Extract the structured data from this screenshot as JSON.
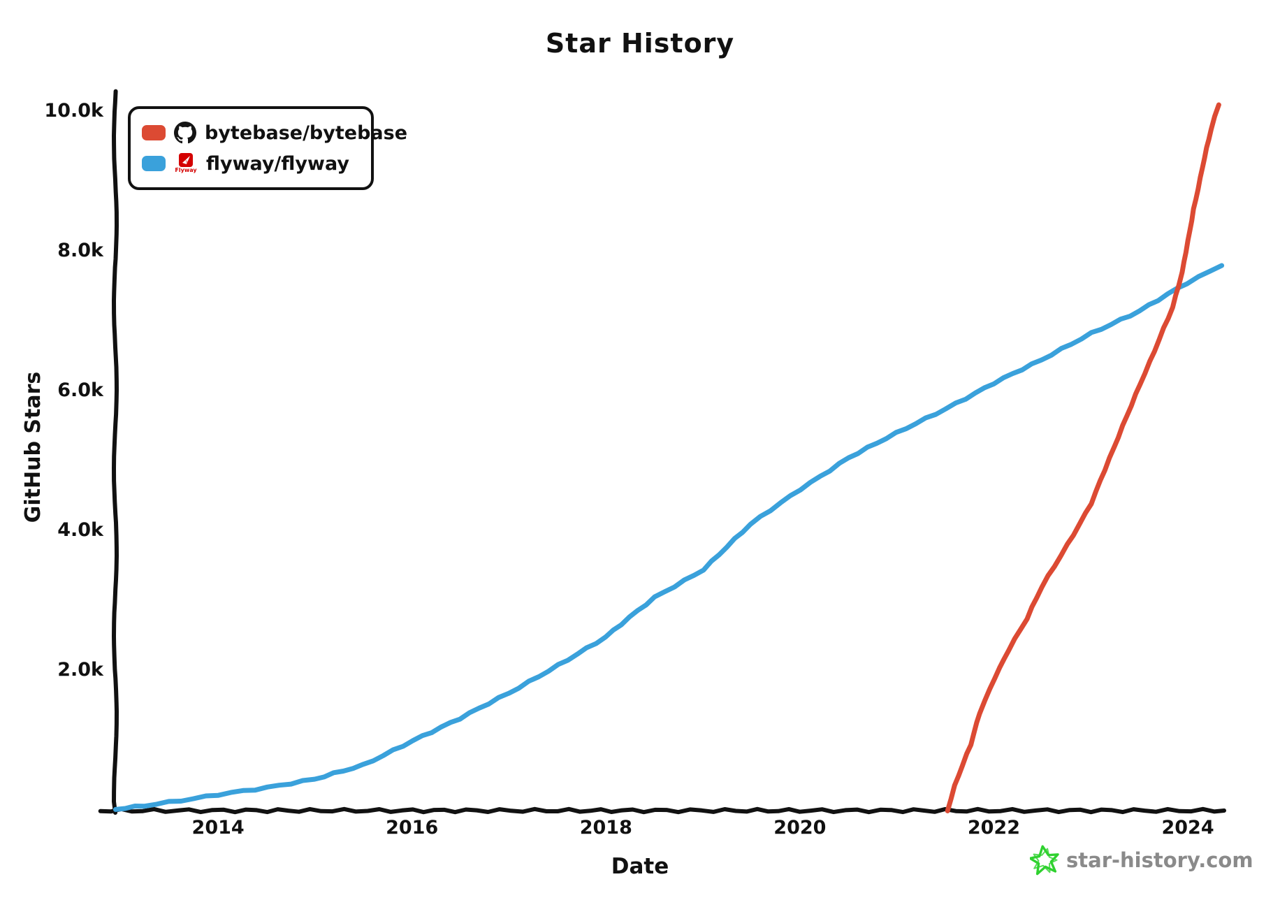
{
  "title": "Star History",
  "watermark": {
    "text": "star-history.com",
    "star_color": "#2fd12f",
    "text_color": "#8a8a8a"
  },
  "legend": {
    "items": [
      {
        "label": "bytebase/bytebase",
        "icon": "github-octocat",
        "swatch_color": "#dc4a33"
      },
      {
        "label": "flyway/flyway",
        "icon": "flyway-logo",
        "swatch_color": "#3aa1db"
      }
    ]
  },
  "chart_data": {
    "type": "line",
    "title": "Star History",
    "xlabel": "Date",
    "ylabel": "GitHub Stars",
    "xlim": [
      2012.94,
      2024.36
    ],
    "ylim": [
      0,
      10250
    ],
    "grid": false,
    "legend_position": "top-left",
    "x_ticks": [
      {
        "value": 2014,
        "label": "2014"
      },
      {
        "value": 2016,
        "label": "2016"
      },
      {
        "value": 2018,
        "label": "2018"
      },
      {
        "value": 2020,
        "label": "2020"
      },
      {
        "value": 2022,
        "label": "2022"
      },
      {
        "value": 2024,
        "label": "2024"
      }
    ],
    "y_ticks": [
      {
        "value": 2000,
        "label": "2.0k"
      },
      {
        "value": 4000,
        "label": "4.0k"
      },
      {
        "value": 6000,
        "label": "6.0k"
      },
      {
        "value": 8000,
        "label": "8.0k"
      },
      {
        "value": 10000,
        "label": "10.0k"
      }
    ],
    "series": [
      {
        "name": "flyway/flyway",
        "color": "#3aa1db",
        "points": [
          [
            2012.94,
            20
          ],
          [
            2013.25,
            70
          ],
          [
            2013.5,
            120
          ],
          [
            2013.75,
            170
          ],
          [
            2014.0,
            230
          ],
          [
            2014.5,
            330
          ],
          [
            2015.0,
            450
          ],
          [
            2015.5,
            650
          ],
          [
            2016.0,
            1000
          ],
          [
            2016.5,
            1320
          ],
          [
            2017.0,
            1680
          ],
          [
            2017.5,
            2080
          ],
          [
            2018.0,
            2480
          ],
          [
            2018.5,
            3050
          ],
          [
            2019.0,
            3450
          ],
          [
            2019.5,
            4100
          ],
          [
            2020.0,
            4600
          ],
          [
            2020.5,
            5050
          ],
          [
            2021.0,
            5400
          ],
          [
            2021.5,
            5750
          ],
          [
            2022.0,
            6120
          ],
          [
            2022.5,
            6450
          ],
          [
            2023.0,
            6830
          ],
          [
            2023.5,
            7150
          ],
          [
            2024.0,
            7550
          ],
          [
            2024.35,
            7800
          ]
        ]
      },
      {
        "name": "bytebase/bytebase",
        "color": "#dc4a33",
        "points": [
          [
            2021.52,
            0
          ],
          [
            2021.6,
            350
          ],
          [
            2021.77,
            950
          ],
          [
            2021.85,
            1400
          ],
          [
            2022.0,
            1900
          ],
          [
            2022.15,
            2300
          ],
          [
            2022.35,
            2750
          ],
          [
            2022.5,
            3200
          ],
          [
            2022.75,
            3800
          ],
          [
            2023.0,
            4400
          ],
          [
            2023.25,
            5200
          ],
          [
            2023.5,
            6100
          ],
          [
            2023.75,
            6900
          ],
          [
            2023.85,
            7200
          ],
          [
            2023.95,
            7700
          ],
          [
            2024.05,
            8600
          ],
          [
            2024.15,
            9200
          ],
          [
            2024.25,
            9750
          ],
          [
            2024.32,
            10100
          ]
        ]
      }
    ]
  }
}
